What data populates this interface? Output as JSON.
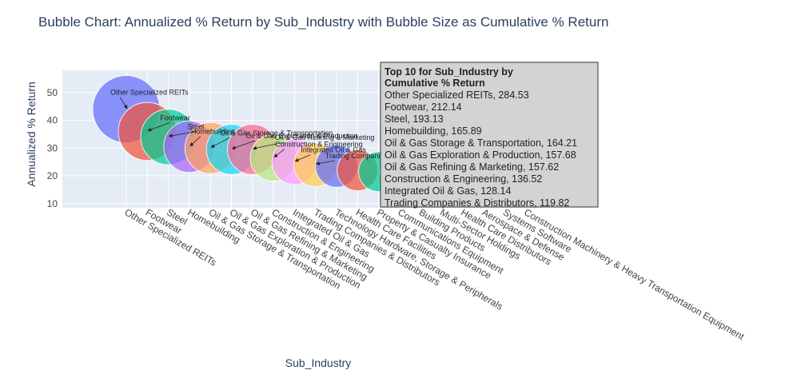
{
  "chart_data": {
    "type": "scatter",
    "title": "Bubble Chart: Annualized % Return by Sub_Industry with Bubble Size as Cumulative % Return",
    "xlabel": "Sub_Industry",
    "ylabel": "Annualized % Return",
    "ylim": [
      8.5,
      58
    ],
    "yticks": [
      10,
      20,
      30,
      40,
      50
    ],
    "grid": true,
    "categories": [
      "Other Specialized REITs",
      "Footwear",
      "Steel",
      "Homebuilding",
      "Oil & Gas Storage & Transportation",
      "Oil & Gas Exploration & Production",
      "Oil & Gas Refining & Marketing",
      "Construction & Engineering",
      "Integrated Oil & Gas",
      "Trading Companies & Distributors",
      "Technology Hardware, Storage & Peripherals",
      "Health Care Facilities",
      "Property & Casualty Insurance",
      "Communications Equipment",
      "Building Products",
      "Multi-Sector Holdings",
      "Health Care Distributors",
      "Aerospace & Defense",
      "Systems Software",
      "Construction Machinery & Heavy Transportation Equipment"
    ],
    "y_values": [
      44,
      36,
      34,
      30.5,
      30,
      29.5,
      29.5,
      26.5,
      25,
      24,
      23.5,
      22,
      21.5,
      21.5,
      21,
      21,
      20.5,
      20.5,
      20,
      20
    ],
    "size_values": [
      284.53,
      212.14,
      193.13,
      165.89,
      164.21,
      157.68,
      157.62,
      136.52,
      128.14,
      119.82,
      112,
      105,
      100,
      96,
      92,
      88,
      85,
      82,
      80,
      78
    ],
    "colors": [
      "#636efa",
      "#ef553b",
      "#00cc96",
      "#ab63fa",
      "#ffa15a",
      "#19d3f3",
      "#ff6692",
      "#b6e880",
      "#ff97ff",
      "#fecb52",
      "#636efa",
      "#ef553b",
      "#00cc96",
      "#ab63fa",
      "#ffa15a",
      "#19d3f3",
      "#ff6692",
      "#b6e880",
      "#ff97ff",
      "#fecb52"
    ],
    "annotations": [
      "Other Specialized REITs",
      "Footwear",
      "Steel",
      "Homebuilding",
      "Oil & Gas Storage & Transportation",
      "Oil & Gas Exploration & Production",
      "Oil & Gas Refining & Marketing",
      "Construction & Engineering",
      "Integrated Oil & Gas",
      "Trading Companies & Distributors"
    ],
    "info_box": {
      "title_line1": "Top 10 for Sub_Industry by",
      "title_line2": "Cumulative % Return",
      "lines": [
        "Other Specialized REITs, 284.53",
        "Footwear, 212.14",
        "Steel, 193.13",
        "Homebuilding, 165.89",
        "Oil & Gas Storage & Transportation, 164.21",
        "Oil & Gas Exploration & Production, 157.68",
        "Oil & Gas Refining & Marketing, 157.62",
        "Construction & Engineering, 136.52",
        "Integrated Oil & Gas, 128.14",
        "Trading Companies & Distributors, 119.82"
      ]
    }
  },
  "colors": {
    "plot_bg": "#e5ecf6",
    "grid": "#ffffff",
    "box_bg": "#d3d3d3",
    "box_border": "#333333"
  }
}
